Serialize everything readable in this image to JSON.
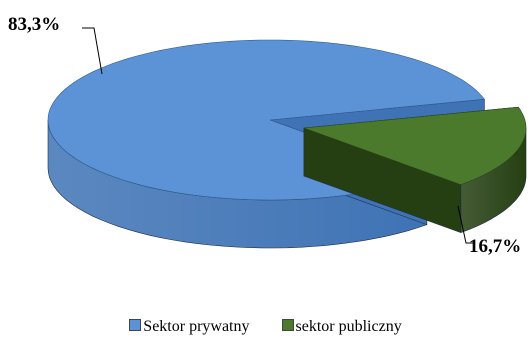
{
  "chart_data": {
    "type": "pie",
    "title": "",
    "slices": [
      {
        "label": "Sektor prywatny",
        "value": 83.3,
        "display": "83,3%",
        "color": "#5b93d6",
        "side_color": "#3f73b5"
      },
      {
        "label": "sektor publiczny",
        "value": 16.7,
        "display": "16,7%",
        "color": "#4c7a2c",
        "side_color": "#253f12"
      }
    ],
    "legend_position": "bottom",
    "style": "3d-exploded"
  }
}
